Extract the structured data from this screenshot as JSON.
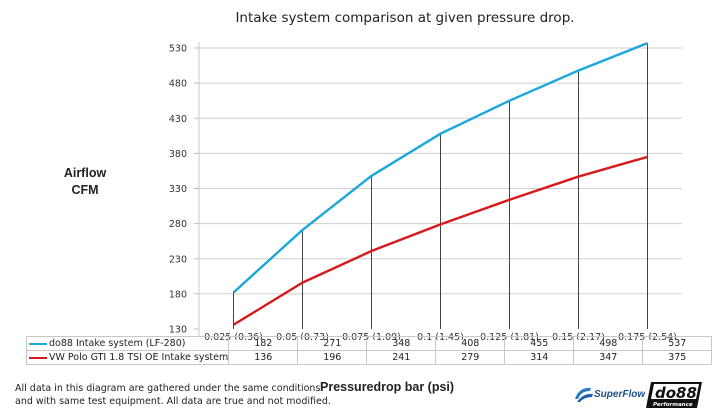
{
  "chart_data": {
    "type": "line",
    "title": "Intake system comparison at given pressure drop.",
    "xlabel": "Pressuredrop bar (psi)",
    "ylabel": [
      "Airflow",
      "CFM"
    ],
    "categories": [
      "0,025 (0,36)",
      "0,05 (0,73)",
      "0,075 (1,09)",
      "0,1 (1,45)",
      "0,125 (1,81)",
      "0,15 (2,17)",
      "0,175 (2,54)"
    ],
    "series": [
      {
        "name": "do88 Intake system (LF-280)",
        "color": "#1aa7dc",
        "values": [
          182,
          271,
          348,
          408,
          455,
          498,
          537
        ]
      },
      {
        "name": "VW Polo GTI 1.8 TSI OE Intake system",
        "color": "#d7191c",
        "values": [
          136,
          196,
          241,
          279,
          314,
          347,
          375
        ]
      }
    ],
    "ylim": [
      130,
      530
    ],
    "yticks": [
      130,
      180,
      230,
      280,
      330,
      380,
      430,
      480,
      530
    ],
    "grid": true,
    "drop_lines": true,
    "legend_placement": "data-table-below"
  },
  "footnote": [
    "All data in this diagram are gathered under the same conditions",
    "and with same test equipment. All data are true and not modified."
  ],
  "logos": {
    "superflow": "SuperFlow",
    "do88": "do88",
    "do88_sub": "Performance"
  }
}
